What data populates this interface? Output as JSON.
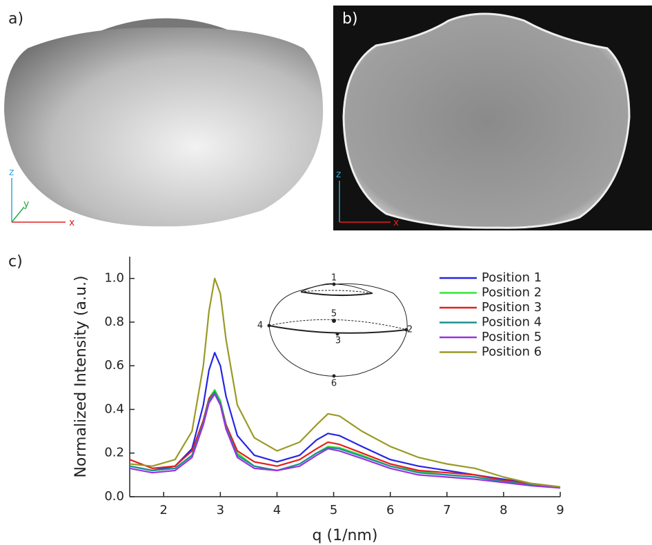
{
  "panels": {
    "a": {
      "label": "a)",
      "axes": [
        "z",
        "y",
        "x"
      ]
    },
    "b": {
      "label": "b)",
      "axes": [
        "z",
        "x"
      ]
    },
    "c": {
      "label": "c)"
    }
  },
  "chart_data": {
    "type": "line",
    "xlabel": "q (1/nm)",
    "ylabel": "Normalized Intensity (a.u.)",
    "x": [
      1.4,
      1.8,
      2.2,
      2.5,
      2.7,
      2.8,
      2.9,
      3.0,
      3.1,
      3.3,
      3.6,
      4.0,
      4.4,
      4.7,
      4.9,
      5.1,
      5.5,
      6.0,
      6.5,
      7.0,
      7.5,
      8.0,
      8.5,
      9.0
    ],
    "series": [
      {
        "name": "Position 1",
        "color": "#2424e6",
        "values": [
          0.14,
          0.12,
          0.14,
          0.22,
          0.42,
          0.58,
          0.66,
          0.6,
          0.46,
          0.28,
          0.19,
          0.16,
          0.19,
          0.26,
          0.29,
          0.28,
          0.23,
          0.17,
          0.14,
          0.12,
          0.1,
          0.08,
          0.06,
          0.045
        ]
      },
      {
        "name": "Position 2",
        "color": "#33e633",
        "values": [
          0.14,
          0.12,
          0.13,
          0.19,
          0.35,
          0.45,
          0.49,
          0.44,
          0.33,
          0.2,
          0.14,
          0.12,
          0.15,
          0.2,
          0.23,
          0.225,
          0.19,
          0.14,
          0.115,
          0.1,
          0.09,
          0.07,
          0.055,
          0.045
        ]
      },
      {
        "name": "Position 3",
        "color": "#e81c1c",
        "values": [
          0.17,
          0.13,
          0.14,
          0.21,
          0.35,
          0.45,
          0.48,
          0.43,
          0.33,
          0.21,
          0.16,
          0.14,
          0.17,
          0.22,
          0.25,
          0.24,
          0.2,
          0.15,
          0.12,
          0.11,
          0.1,
          0.075,
          0.06,
          0.045
        ]
      },
      {
        "name": "Position 4",
        "color": "#1a9090",
        "values": [
          0.14,
          0.12,
          0.13,
          0.19,
          0.34,
          0.44,
          0.48,
          0.43,
          0.32,
          0.19,
          0.14,
          0.12,
          0.15,
          0.2,
          0.225,
          0.22,
          0.185,
          0.14,
          0.11,
          0.1,
          0.09,
          0.07,
          0.055,
          0.045
        ]
      },
      {
        "name": "Position 5",
        "color": "#9a32e0",
        "values": [
          0.13,
          0.11,
          0.12,
          0.18,
          0.33,
          0.43,
          0.47,
          0.42,
          0.31,
          0.18,
          0.13,
          0.12,
          0.14,
          0.19,
          0.22,
          0.21,
          0.175,
          0.13,
          0.1,
          0.09,
          0.08,
          0.065,
          0.05,
          0.04
        ]
      },
      {
        "name": "Position 6",
        "color": "#999926",
        "values": [
          0.15,
          0.14,
          0.17,
          0.3,
          0.6,
          0.85,
          1.0,
          0.93,
          0.72,
          0.42,
          0.27,
          0.21,
          0.25,
          0.33,
          0.38,
          0.37,
          0.3,
          0.23,
          0.18,
          0.15,
          0.13,
          0.09,
          0.06,
          0.045
        ]
      }
    ],
    "xlim": [
      1.4,
      9
    ],
    "xticks": [
      2,
      3,
      4,
      5,
      6,
      7,
      8,
      9
    ],
    "ylim": [
      0,
      1.1
    ],
    "yticks": [
      {
        "value": 0,
        "label": "0.0"
      },
      0.2,
      0.4,
      0.6,
      0.8,
      {
        "value": 1,
        "label": "1.0"
      }
    ],
    "legend": "top-right",
    "inset": {
      "labels": [
        "1",
        "2",
        "3",
        "4",
        "5",
        "6"
      ]
    }
  }
}
